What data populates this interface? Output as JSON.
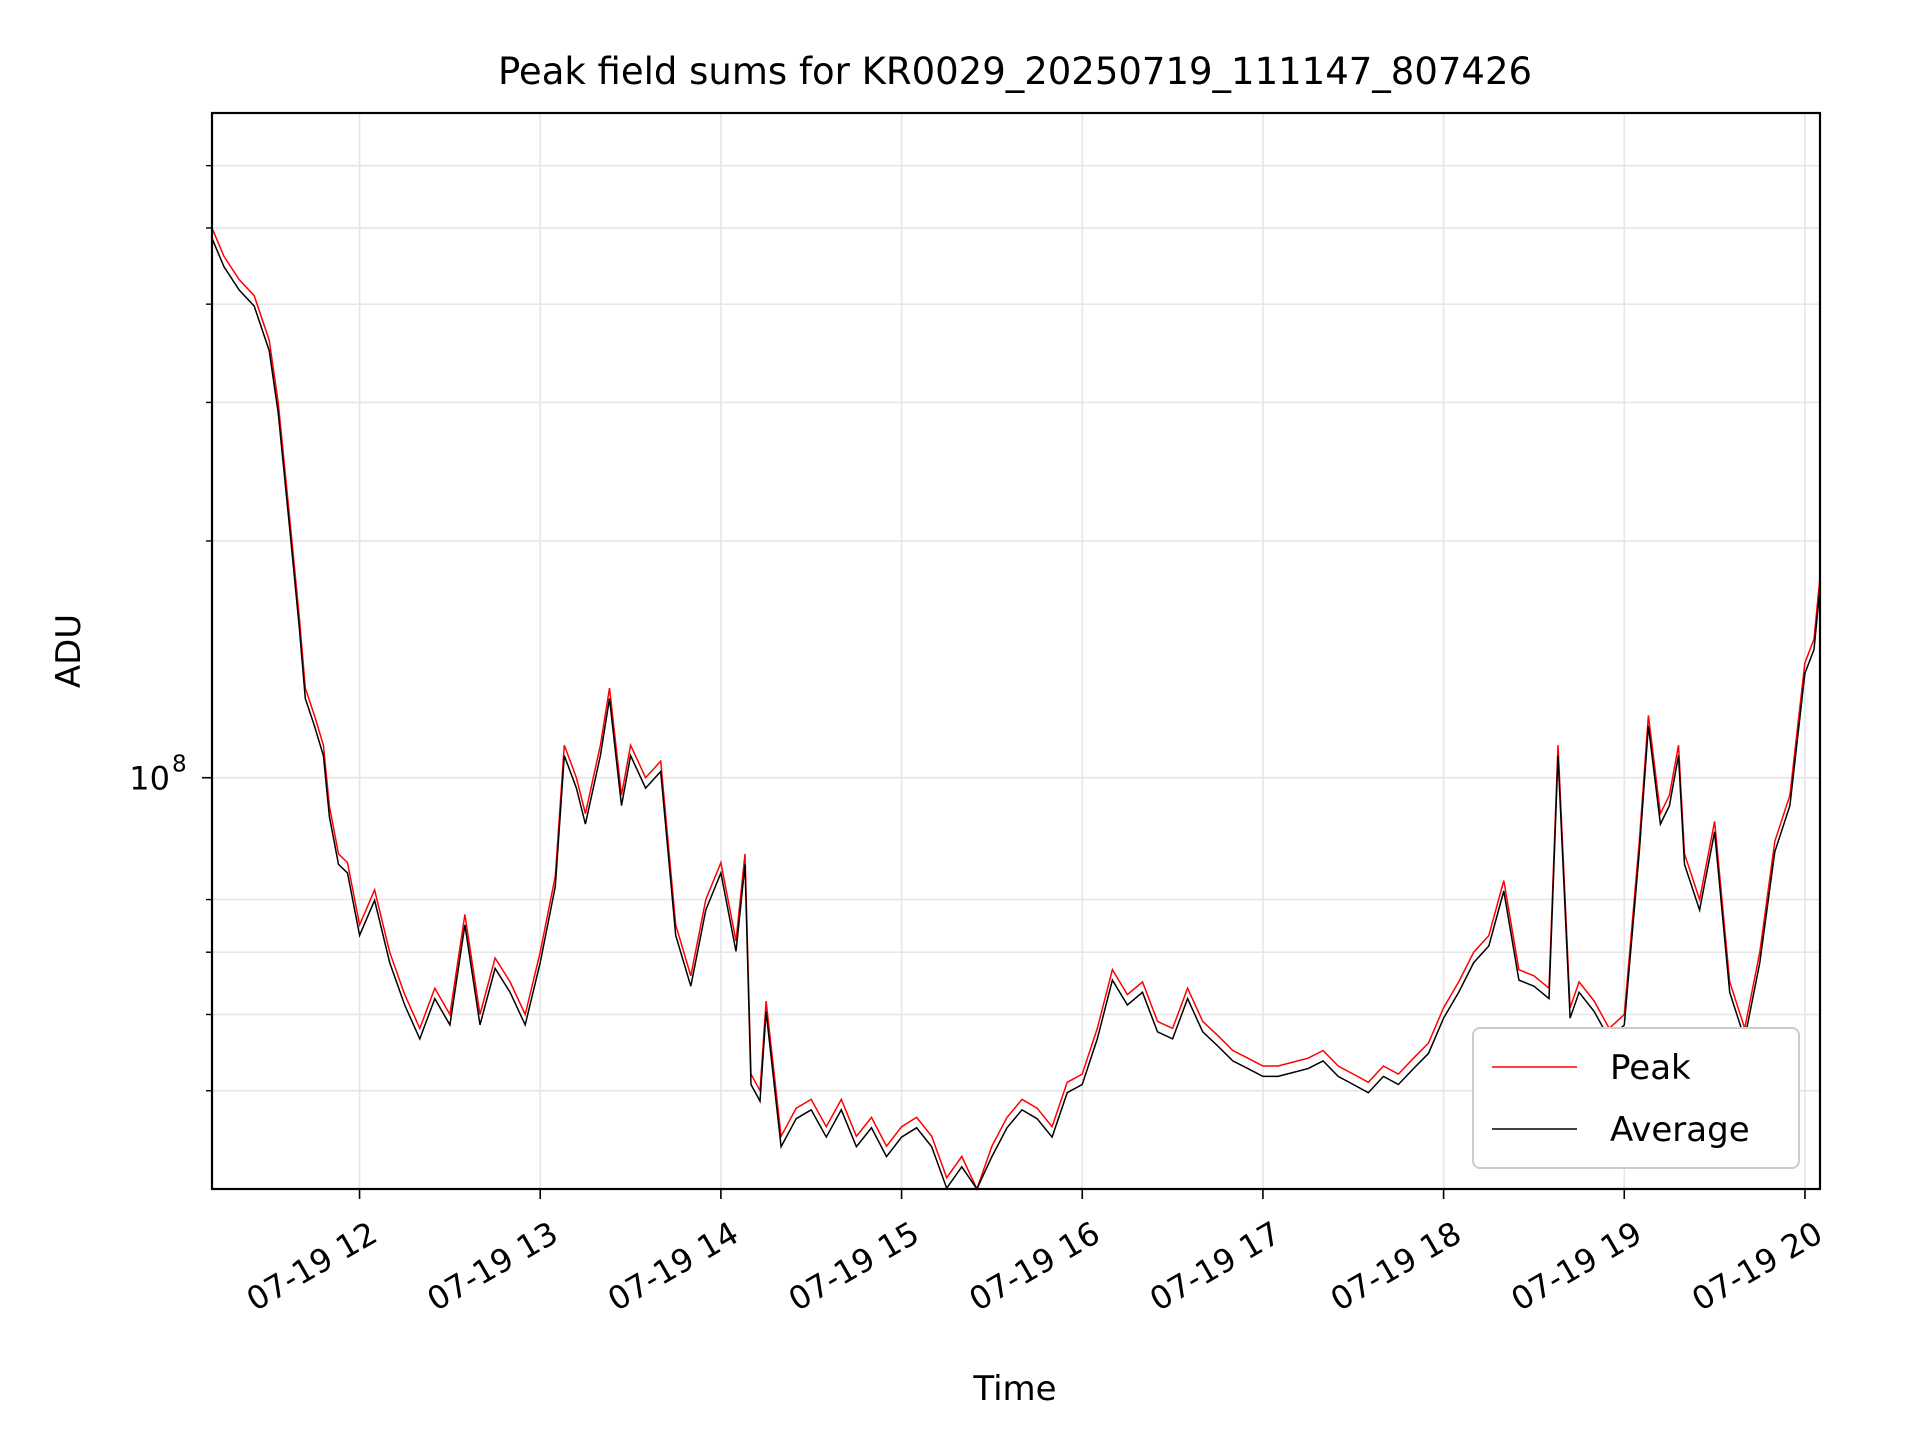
{
  "chart_data": {
    "type": "line",
    "title": "Peak field sums for KR0029_20250719_111147_807426",
    "xlabel": "Time",
    "ylabel": "ADU",
    "yscale": "log",
    "x_ticks": [
      "07-19 12",
      "07-19 13",
      "07-19 14",
      "07-19 15",
      "07-19 16",
      "07-19 17",
      "07-19 18",
      "07-19 19",
      "07-19 20"
    ],
    "y_major_tick": {
      "value": 100000000,
      "base": "10",
      "exponent": "8"
    },
    "xlim": [
      "2025-07-19 11:11",
      "2025-07-19 20:05"
    ],
    "ylim": [
      30000000,
      700000000
    ],
    "grid": true,
    "legend_position": "lower-right",
    "series": [
      {
        "name": "Peak",
        "color": "#ff0000",
        "points": [
          [
            "11:11",
            500000000.0
          ],
          [
            "11:15",
            460000000.0
          ],
          [
            "11:20",
            430000000.0
          ],
          [
            "11:25",
            410000000.0
          ],
          [
            "11:30",
            360000000.0
          ],
          [
            "11:33",
            300000000.0
          ],
          [
            "11:37",
            210000000.0
          ],
          [
            "11:40",
            160000000.0
          ],
          [
            "11:42",
            130000000.0
          ],
          [
            "11:45",
            120000000.0
          ],
          [
            "11:48",
            110000000.0
          ],
          [
            "11:50",
            92000000.0
          ],
          [
            "11:53",
            80000000.0
          ],
          [
            "11:56",
            78000000.0
          ],
          [
            "12:00",
            65000000.0
          ],
          [
            "12:05",
            72000000.0
          ],
          [
            "12:10",
            60000000.0
          ],
          [
            "12:15",
            53000000.0
          ],
          [
            "12:20",
            48000000.0
          ],
          [
            "12:25",
            54000000.0
          ],
          [
            "12:30",
            50000000.0
          ],
          [
            "12:35",
            67000000.0
          ],
          [
            "12:40",
            50000000.0
          ],
          [
            "12:45",
            59000000.0
          ],
          [
            "12:50",
            55000000.0
          ],
          [
            "12:55",
            50000000.0
          ],
          [
            "13:00",
            60000000.0
          ],
          [
            "13:05",
            75000000.0
          ],
          [
            "13:08",
            110000000.0
          ],
          [
            "13:12",
            100000000.0
          ],
          [
            "13:15",
            90000000.0
          ],
          [
            "13:20",
            110000000.0
          ],
          [
            "13:23",
            130000000.0
          ],
          [
            "13:27",
            95000000.0
          ],
          [
            "13:30",
            110000000.0
          ],
          [
            "13:35",
            100000000.0
          ],
          [
            "13:40",
            105000000.0
          ],
          [
            "13:45",
            65000000.0
          ],
          [
            "13:50",
            56000000.0
          ],
          [
            "13:55",
            70000000.0
          ],
          [
            "14:00",
            78000000.0
          ],
          [
            "14:05",
            62000000.0
          ],
          [
            "14:08",
            80000000.0
          ],
          [
            "14:10",
            42000000.0
          ],
          [
            "14:13",
            40000000.0
          ],
          [
            "14:15",
            52000000.0
          ],
          [
            "14:20",
            35000000.0
          ],
          [
            "14:25",
            38000000.0
          ],
          [
            "14:30",
            39000000.0
          ],
          [
            "14:35",
            36000000.0
          ],
          [
            "14:40",
            39000000.0
          ],
          [
            "14:45",
            35000000.0
          ],
          [
            "14:50",
            37000000.0
          ],
          [
            "14:55",
            34000000.0
          ],
          [
            "15:00",
            36000000.0
          ],
          [
            "15:05",
            37000000.0
          ],
          [
            "15:10",
            35000000.0
          ],
          [
            "15:15",
            31000000.0
          ],
          [
            "15:20",
            33000000.0
          ],
          [
            "15:25",
            30000000.0
          ],
          [
            "15:30",
            34000000.0
          ],
          [
            "15:35",
            37000000.0
          ],
          [
            "15:40",
            39000000.0
          ],
          [
            "15:45",
            38000000.0
          ],
          [
            "15:50",
            36000000.0
          ],
          [
            "15:55",
            41000000.0
          ],
          [
            "16:00",
            42000000.0
          ],
          [
            "16:05",
            48000000.0
          ],
          [
            "16:10",
            57000000.0
          ],
          [
            "16:15",
            53000000.0
          ],
          [
            "16:20",
            55000000.0
          ],
          [
            "16:25",
            49000000.0
          ],
          [
            "16:30",
            48000000.0
          ],
          [
            "16:35",
            54000000.0
          ],
          [
            "16:40",
            49000000.0
          ],
          [
            "16:45",
            47000000.0
          ],
          [
            "16:50",
            45000000.0
          ],
          [
            "16:55",
            44000000.0
          ],
          [
            "17:00",
            43000000.0
          ],
          [
            "17:05",
            43000000.0
          ],
          [
            "17:10",
            43500000.0
          ],
          [
            "17:15",
            44000000.0
          ],
          [
            "17:20",
            45000000.0
          ],
          [
            "17:25",
            43000000.0
          ],
          [
            "17:30",
            42000000.0
          ],
          [
            "17:35",
            41000000.0
          ],
          [
            "17:40",
            43000000.0
          ],
          [
            "17:45",
            42000000.0
          ],
          [
            "17:50",
            44000000.0
          ],
          [
            "17:55",
            46000000.0
          ],
          [
            "18:00",
            51000000.0
          ],
          [
            "18:05",
            55000000.0
          ],
          [
            "18:10",
            60000000.0
          ],
          [
            "18:15",
            63000000.0
          ],
          [
            "18:20",
            74000000.0
          ],
          [
            "18:25",
            57000000.0
          ],
          [
            "18:30",
            56000000.0
          ],
          [
            "18:35",
            54000000.0
          ],
          [
            "18:38",
            110000000.0
          ],
          [
            "18:42",
            51000000.0
          ],
          [
            "18:45",
            55000000.0
          ],
          [
            "18:50",
            52000000.0
          ],
          [
            "18:55",
            48000000.0
          ],
          [
            "19:00",
            50000000.0
          ],
          [
            "19:05",
            83000000.0
          ],
          [
            "19:08",
            120000000.0
          ],
          [
            "19:12",
            90000000.0
          ],
          [
            "19:15",
            95000000.0
          ],
          [
            "19:18",
            110000000.0
          ],
          [
            "19:20",
            80000000.0
          ],
          [
            "19:25",
            70000000.0
          ],
          [
            "19:30",
            88000000.0
          ],
          [
            "19:35",
            55000000.0
          ],
          [
            "19:40",
            48000000.0
          ],
          [
            "19:45",
            60000000.0
          ],
          [
            "19:50",
            83000000.0
          ],
          [
            "19:55",
            95000000.0
          ],
          [
            "20:00",
            140000000.0
          ],
          [
            "20:03",
            150000000.0
          ],
          [
            "20:05",
            180000000.0
          ]
        ]
      },
      {
        "name": "Average",
        "color": "#000000",
        "points": []
      }
    ]
  }
}
